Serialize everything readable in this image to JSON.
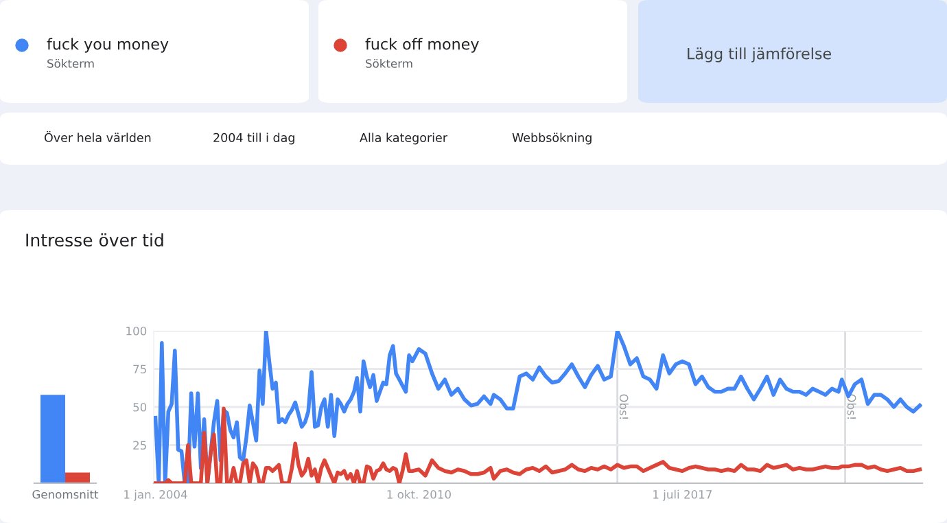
{
  "chart_data": [
    {
      "type": "bar",
      "title": "Intresse över tid",
      "categories": [
        "Genomsnitt"
      ],
      "ylim": [
        0,
        100
      ],
      "tick_labels": "x",
      "grid": false,
      "series": [
        {
          "color": "#4285f4",
          "values": [
            58
          ]
        },
        {
          "color": "#db4437",
          "values": [
            7
          ]
        }
      ]
    },
    {
      "type": "line",
      "legend": "top",
      "grid": "y",
      "marker": "none",
      "line_style": "solid",
      "annotations": [
        "Sökterm",
        "Sökterm",
        "Lägg till jämförelse",
        "Över hela världen",
        "2004 till i dag",
        "Alla kategorier",
        "Webbsökning"
      ],
      "xlim": [
        "2003-12-16",
        "2023-08-24"
      ],
      "ylim": [
        0,
        100
      ],
      "yticks": [
        25,
        50,
        75,
        100
      ],
      "xticks": [
        {
          "value": "2004-01-01",
          "label": "1 jan. 2004"
        },
        {
          "value": "2010-10-01",
          "label": "1 okt. 2010"
        },
        {
          "value": "2017-07-01",
          "label": "1 juli 2017"
        }
      ],
      "ref_lines": [
        {
          "axis": "x",
          "value": "2015-11",
          "label": "Obs!",
          "color": "#dadce0"
        },
        {
          "axis": "x",
          "value": "2021-09",
          "label": "Obs!",
          "color": "#dadce0"
        }
      ],
      "x": [
        "2004-01",
        "2004-02",
        "2004-03",
        "2004-04",
        "2004-05",
        "2004-06",
        "2004-07",
        "2004-08",
        "2004-09",
        "2004-10",
        "2004-11",
        "2004-12",
        "2005-01",
        "2005-02",
        "2005-03",
        "2005-04",
        "2005-05",
        "2005-06",
        "2005-07",
        "2005-08",
        "2005-09",
        "2005-10",
        "2005-11",
        "2005-12",
        "2006-01",
        "2006-02",
        "2006-03",
        "2006-04",
        "2006-05",
        "2006-06",
        "2006-07",
        "2006-08",
        "2006-09",
        "2006-10",
        "2006-11",
        "2006-12",
        "2007-01",
        "2007-02",
        "2007-03",
        "2007-04",
        "2007-05",
        "2007-06",
        "2007-07",
        "2007-08",
        "2007-09",
        "2007-10",
        "2007-11",
        "2007-12",
        "2008-01",
        "2008-02",
        "2008-03",
        "2008-04",
        "2008-05",
        "2008-06",
        "2008-07",
        "2008-08",
        "2008-09",
        "2008-10",
        "2008-11",
        "2008-12",
        "2009-01",
        "2009-02",
        "2009-03",
        "2009-04",
        "2009-05",
        "2009-06",
        "2009-07",
        "2009-08",
        "2009-09",
        "2009-10",
        "2009-11",
        "2009-12",
        "2010-01",
        "2010-02",
        "2010-03",
        "2010-04",
        "2010-05",
        "2010-06",
        "2010-07",
        "2010-08",
        "2010-10",
        "2010-12",
        "2011-02",
        "2011-04",
        "2011-06",
        "2011-08",
        "2011-10",
        "2011-12",
        "2012-02",
        "2012-04",
        "2012-06",
        "2012-08",
        "2012-09",
        "2012-11",
        "2013-01",
        "2013-03",
        "2013-05",
        "2013-07",
        "2013-09",
        "2013-11",
        "2014-01",
        "2014-03",
        "2014-05",
        "2014-07",
        "2014-09",
        "2014-11",
        "2015-01",
        "2015-03",
        "2015-05",
        "2015-07",
        "2015-09",
        "2015-11",
        "2016-01",
        "2016-03",
        "2016-05",
        "2016-07",
        "2016-09",
        "2016-11",
        "2017-01",
        "2017-03",
        "2017-05",
        "2017-07",
        "2017-09",
        "2017-11",
        "2018-01",
        "2018-03",
        "2018-05",
        "2018-07",
        "2018-09",
        "2018-11",
        "2019-01",
        "2019-03",
        "2019-05",
        "2019-07",
        "2019-09",
        "2019-11",
        "2020-01",
        "2020-03",
        "2020-05",
        "2020-07",
        "2020-09",
        "2020-11",
        "2021-01",
        "2021-03",
        "2021-05",
        "2021-07",
        "2021-08",
        "2021-10",
        "2021-12",
        "2022-02",
        "2022-04",
        "2022-06",
        "2022-08",
        "2022-10",
        "2022-12",
        "2023-02",
        "2023-04",
        "2023-06",
        "2023-08"
      ],
      "series": [
        {
          "name": "fuck you money",
          "color": "#4285f4",
          "values": [
            43,
            0,
            92,
            0,
            47,
            52,
            87,
            22,
            21,
            0,
            0,
            59,
            24,
            59,
            10,
            42,
            0,
            20,
            40,
            54,
            15,
            48,
            46,
            35,
            30,
            40,
            17,
            15,
            30,
            51,
            40,
            28,
            74,
            52,
            100,
            80,
            62,
            66,
            40,
            42,
            40,
            45,
            48,
            53,
            45,
            37,
            40,
            47,
            73,
            37,
            38,
            50,
            55,
            37,
            58,
            31,
            55,
            52,
            47,
            52,
            55,
            60,
            69,
            47,
            80,
            70,
            63,
            71,
            54,
            60,
            66,
            65,
            84,
            90,
            72,
            68,
            64,
            60,
            84,
            80,
            88,
            85,
            72,
            62,
            68,
            58,
            62,
            55,
            51,
            52,
            57,
            52,
            58,
            55,
            49,
            49,
            70,
            72,
            68,
            76,
            70,
            66,
            67,
            72,
            78,
            70,
            63,
            71,
            77,
            68,
            70,
            100,
            90,
            78,
            82,
            70,
            68,
            62,
            84,
            72,
            78,
            80,
            78,
            65,
            70,
            63,
            60,
            60,
            62,
            62,
            70,
            62,
            55,
            62,
            70,
            58,
            68,
            62,
            60,
            60,
            58,
            62,
            60,
            58,
            62,
            60,
            68,
            57,
            65,
            68,
            52,
            58,
            58,
            55,
            50,
            55,
            50,
            47,
            51
          ]
        },
        {
          "name": "fuck off money",
          "color": "#db4437",
          "values": [
            0,
            0,
            0,
            0,
            2,
            0,
            0,
            0,
            0,
            0,
            25,
            0,
            0,
            0,
            0,
            33,
            0,
            20,
            32,
            0,
            0,
            49,
            0,
            0,
            10,
            0,
            0,
            13,
            15,
            0,
            13,
            10,
            0,
            0,
            10,
            10,
            8,
            10,
            12,
            0,
            0,
            0,
            10,
            26,
            12,
            5,
            8,
            16,
            5,
            9,
            0,
            10,
            15,
            10,
            5,
            0,
            7,
            6,
            8,
            3,
            6,
            0,
            8,
            0,
            0,
            11,
            10,
            3,
            8,
            9,
            13,
            9,
            8,
            10,
            9,
            0,
            8,
            19,
            8,
            8,
            9,
            5,
            15,
            10,
            8,
            7,
            9,
            8,
            6,
            6,
            7,
            10,
            3,
            8,
            9,
            7,
            6,
            9,
            10,
            8,
            11,
            7,
            8,
            9,
            12,
            9,
            8,
            10,
            9,
            11,
            9,
            12,
            10,
            11,
            11,
            8,
            10,
            12,
            14,
            10,
            9,
            8,
            10,
            11,
            10,
            9,
            9,
            8,
            9,
            8,
            12,
            9,
            9,
            8,
            12,
            10,
            11,
            12,
            9,
            10,
            9,
            9,
            10,
            11,
            10,
            10,
            11,
            11,
            12,
            12,
            10,
            11,
            9,
            8,
            9,
            10,
            8,
            8,
            9
          ]
        }
      ]
    }
  ]
}
